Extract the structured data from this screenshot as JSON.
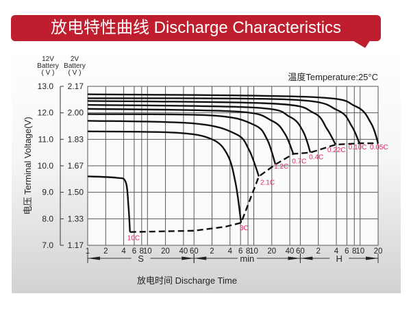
{
  "title": "放电特性曲线 Discharge Characteristics",
  "colors": {
    "banner": "#be1e2d",
    "curve": "#111111",
    "rate_label": "#e0246a"
  },
  "chart_data": {
    "type": "line",
    "title": "放电特性曲线 Discharge Characteristics",
    "xlabel": "放电时间 Discharge Time",
    "ylabel": "电压 Terminal Voltage(V)",
    "ylabel_secondary_headers": [
      {
        "line1": "12V",
        "line2": "Battery",
        "line3": "( V )"
      },
      {
        "line1": "2V",
        "line2": "Battery",
        "line3": "( V )"
      }
    ],
    "annotation": "温度Temperature:25°C",
    "x_scale": "log",
    "x_unit": "seconds",
    "xlim": [
      1,
      72000
    ],
    "ylim": [
      7.0,
      13.0
    ],
    "grid": true,
    "y_ticks": [
      {
        "v12": "13.0",
        "v2": "2.17",
        "value": 13.0
      },
      {
        "v12": "12.0",
        "v2": "2.00",
        "value": 12.0
      },
      {
        "v12": "11.0",
        "v2": "1.83",
        "value": 11.0
      },
      {
        "v12": "10.0",
        "v2": "1.67",
        "value": 10.0
      },
      {
        "v12": "9.0",
        "v2": "1.50",
        "value": 9.0
      },
      {
        "v12": "8.0",
        "v2": "1.33",
        "value": 8.0
      },
      {
        "v12": "7.0",
        "v2": "1.17",
        "value": 7.0
      }
    ],
    "x_ticks": [
      {
        "label": "1",
        "seconds": 1
      },
      {
        "label": "2",
        "seconds": 2
      },
      {
        "label": "4",
        "seconds": 4
      },
      {
        "label": "6",
        "seconds": 6
      },
      {
        "label": "8",
        "seconds": 8
      },
      {
        "label": "10",
        "seconds": 10
      },
      {
        "label": "20",
        "seconds": 20
      },
      {
        "label": "40",
        "seconds": 40
      },
      {
        "label": "60",
        "seconds": 60
      },
      {
        "label": "2",
        "seconds": 120
      },
      {
        "label": "4",
        "seconds": 240
      },
      {
        "label": "6",
        "seconds": 360
      },
      {
        "label": "8",
        "seconds": 480
      },
      {
        "label": "10",
        "seconds": 600
      },
      {
        "label": "20",
        "seconds": 1200
      },
      {
        "label": "40",
        "seconds": 2400
      },
      {
        "label": "60",
        "seconds": 3600
      },
      {
        "label": "2",
        "seconds": 7200
      },
      {
        "label": "4",
        "seconds": 14400
      },
      {
        "label": "6",
        "seconds": 21600
      },
      {
        "label": "8",
        "seconds": 28800
      },
      {
        "label": "10",
        "seconds": 36000
      },
      {
        "label": "20",
        "seconds": 72000
      }
    ],
    "x_units": [
      {
        "label": "S",
        "from": 1,
        "to": 60
      },
      {
        "label": "min",
        "from": 60,
        "to": 3600
      },
      {
        "label": "H",
        "from": 3600,
        "to": 72000
      }
    ],
    "series": [
      {
        "name": "10C",
        "points": [
          [
            1,
            9.6
          ],
          [
            3,
            9.55
          ],
          [
            4.3,
            9.4
          ],
          [
            4.8,
            8.5
          ],
          [
            5.1,
            7.5
          ]
        ]
      },
      {
        "name": "3C",
        "points": [
          [
            1,
            11.3
          ],
          [
            30,
            11.25
          ],
          [
            120,
            11.0
          ],
          [
            220,
            10.4
          ],
          [
            300,
            9.3
          ],
          [
            368,
            7.85
          ]
        ]
      },
      {
        "name": "2.1C",
        "points": [
          [
            1,
            11.7
          ],
          [
            60,
            11.6
          ],
          [
            300,
            11.2
          ],
          [
            500,
            10.6
          ],
          [
            730,
            9.6
          ]
        ]
      },
      {
        "name": "1.2C",
        "points": [
          [
            1,
            11.95
          ],
          [
            120,
            11.9
          ],
          [
            600,
            11.55
          ],
          [
            1000,
            11.0
          ],
          [
            1380,
            10.05
          ]
        ]
      },
      {
        "name": "0.7C",
        "points": [
          [
            1,
            12.15
          ],
          [
            300,
            12.05
          ],
          [
            1200,
            11.7
          ],
          [
            2000,
            11.2
          ],
          [
            2750,
            10.45
          ]
        ]
      },
      {
        "name": "0.4C",
        "points": [
          [
            1,
            12.3
          ],
          [
            600,
            12.2
          ],
          [
            2400,
            11.85
          ],
          [
            4000,
            11.3
          ],
          [
            5300,
            10.5
          ]
        ]
      },
      {
        "name": "0.22C",
        "points": [
          [
            1,
            12.45
          ],
          [
            1200,
            12.35
          ],
          [
            6000,
            12.0
          ],
          [
            10000,
            11.4
          ],
          [
            14000,
            10.8
          ]
        ]
      },
      {
        "name": "0.10C",
        "points": [
          [
            1,
            12.55
          ],
          [
            2400,
            12.5
          ],
          [
            15000,
            12.1
          ],
          [
            26000,
            11.5
          ],
          [
            35000,
            10.85
          ]
        ]
      },
      {
        "name": "0.05C",
        "points": [
          [
            1,
            12.7
          ],
          [
            5000,
            12.6
          ],
          [
            30000,
            12.25
          ],
          [
            55000,
            11.6
          ],
          [
            72000,
            10.85
          ]
        ]
      }
    ],
    "cutoff_line": [
      [
        5.1,
        7.5
      ],
      [
        60,
        7.55
      ],
      [
        200,
        7.7
      ],
      [
        368,
        7.85
      ],
      [
        730,
        9.6
      ],
      [
        1380,
        10.05
      ],
      [
        2750,
        10.45
      ],
      [
        5300,
        10.5
      ],
      [
        14000,
        10.8
      ],
      [
        35000,
        10.85
      ],
      [
        72000,
        10.85
      ]
    ]
  }
}
